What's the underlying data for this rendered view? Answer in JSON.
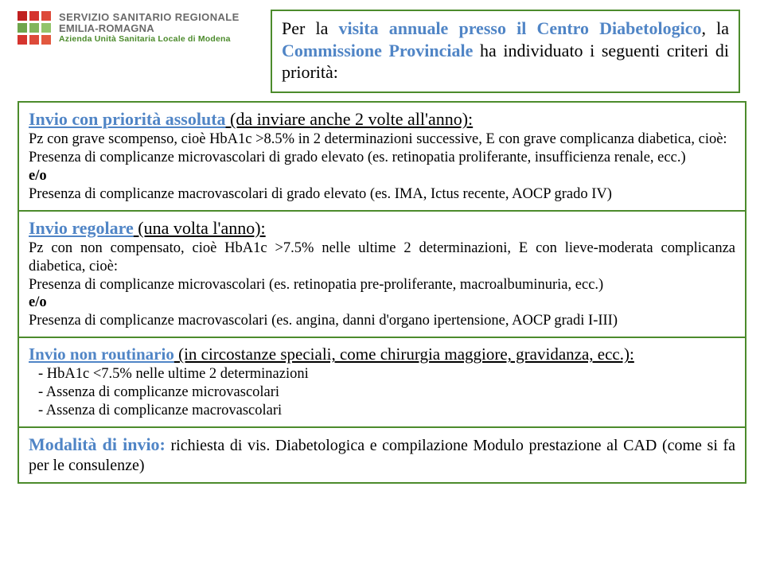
{
  "logo": {
    "line1": "SERVIZIO SANITARIO REGIONALE",
    "line2": "EMILIA-ROMAGNA",
    "line3": "Azienda Unità Sanitaria Locale di Modena"
  },
  "intro": {
    "pre": "Per la ",
    "kw1": "visita annuale presso il Centro Diabetologico",
    "mid": ", la ",
    "kw2": "Commissione Provinciale",
    "post": " ha individuato i seguenti criteri di priorità:"
  },
  "s1": {
    "title_lead": "Invio con priorità assoluta",
    "title_rest": " (da inviare anche 2 volte all'anno):",
    "body": "Pz con grave scompenso, cioè HbA1c >8.5%  in 2 determinazioni successive, E con grave complicanza diabetica, cioè:",
    "line2": "Presenza di complicanze microvascolari di grado elevato (es. retinopatia proliferante, insufficienza renale, ecc.)",
    "eo": "e/o",
    "line3": "Presenza di complicanze macrovascolari di grado elevato (es. IMA, Ictus recente, AOCP grado IV)"
  },
  "s2": {
    "title_lead": "Invio regolare",
    "title_rest": " (una volta l'anno):",
    "body": "Pz con non compensato, cioè HbA1c >7.5%  nelle ultime 2 determinazioni, E con lieve-moderata complicanza diabetica, cioè:",
    "line2": "Presenza di complicanze microvascolari (es. retinopatia pre-proliferante, macroalbuminuria, ecc.)",
    "eo": "e/o",
    "line3": "Presenza di complicanze macrovascolari (es. angina, danni d'organo ipertensione, AOCP gradi I-III)"
  },
  "s3": {
    "title_lead": "Invio non routinario",
    "title_rest": " (in circostanze speciali, come chirurgia maggiore, gravidanza, ecc.):",
    "li1": "HbA1c <7.5%  nelle ultime 2 determinazioni",
    "li2": "Assenza di complicanze microvascolari",
    "li3": "Assenza di complicanze macrovascolari"
  },
  "s4": {
    "title": "Modalità di invio:",
    "body": " richiesta di vis. Diabetologica  e compilazione Modulo prestazione al CAD (come si fa per le consulenze)"
  }
}
